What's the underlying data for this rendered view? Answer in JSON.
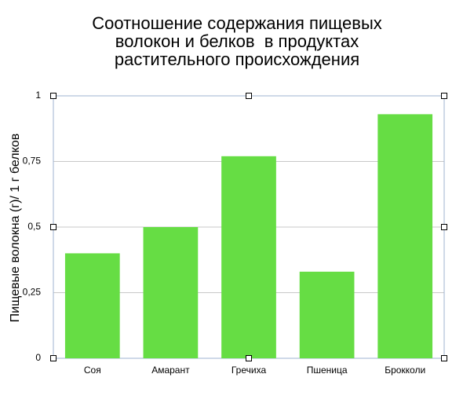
{
  "chart_data": {
    "type": "bar",
    "title": "Соотношение содержания пищевых\nволокон и белков  в продуктах\nрастительного происхождения",
    "y_label": "Пищевые волокна (г)/ 1 г белков",
    "categories": [
      "Соя",
      "Амарант",
      "Гречиха",
      "Пшеница",
      "Брокколи"
    ],
    "values": [
      0.4,
      0.5,
      0.77,
      0.33,
      0.93
    ],
    "color": "#66dd44",
    "ylim": [
      0,
      1
    ],
    "yticks": [
      0,
      {
        "value": 0.25,
        "label": "0,25"
      },
      {
        "value": 0.5,
        "label": "0,5"
      },
      {
        "value": 0.75,
        "label": "0,75"
      },
      1
    ],
    "grid": true
  }
}
